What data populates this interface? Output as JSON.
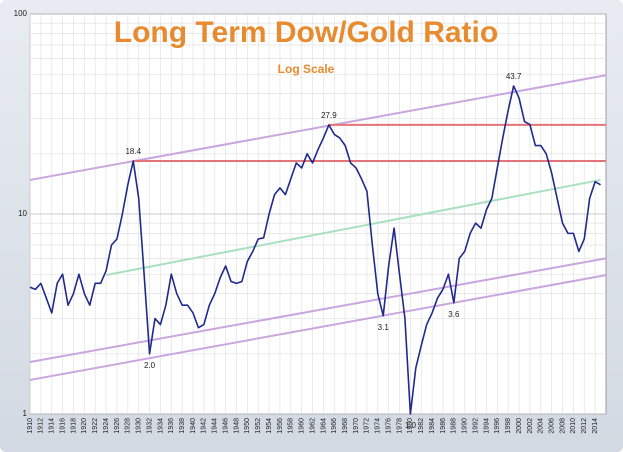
{
  "chart_data": {
    "type": "line",
    "title": "Long Term Dow/Gold Ratio",
    "subtitle": "Log Scale",
    "log_scale": true,
    "grid": true,
    "xlim": [
      1910,
      2016
    ],
    "ylim": [
      1,
      100
    ],
    "yticks": [
      1,
      10,
      100
    ],
    "yminorticks": [
      2,
      3,
      4,
      5,
      6,
      7,
      8,
      9,
      20,
      30,
      40,
      50,
      60,
      70,
      80,
      90
    ],
    "xticks": [
      1910,
      1912,
      1914,
      1916,
      1918,
      1920,
      1922,
      1924,
      1926,
      1928,
      1930,
      1932,
      1934,
      1936,
      1938,
      1940,
      1942,
      1944,
      1946,
      1948,
      1950,
      1952,
      1954,
      1956,
      1958,
      1960,
      1962,
      1964,
      1966,
      1968,
      1970,
      1972,
      1974,
      1976,
      1978,
      1980,
      1982,
      1984,
      1986,
      1988,
      1990,
      1992,
      1994,
      1996,
      1998,
      2000,
      2002,
      2004,
      2006,
      2008,
      2010,
      2012,
      2014
    ],
    "x": [
      1910,
      1911,
      1912,
      1913,
      1914,
      1915,
      1916,
      1917,
      1918,
      1919,
      1920,
      1921,
      1922,
      1923,
      1924,
      1925,
      1926,
      1927,
      1928,
      1929,
      1930,
      1931,
      1932,
      1933,
      1934,
      1935,
      1936,
      1937,
      1938,
      1939,
      1940,
      1941,
      1942,
      1943,
      1944,
      1945,
      1946,
      1947,
      1948,
      1949,
      1950,
      1951,
      1952,
      1953,
      1954,
      1955,
      1956,
      1957,
      1958,
      1959,
      1960,
      1961,
      1962,
      1963,
      1964,
      1965,
      1966,
      1967,
      1968,
      1969,
      1970,
      1971,
      1972,
      1973,
      1974,
      1975,
      1976,
      1977,
      1978,
      1979,
      1980,
      1981,
      1982,
      1983,
      1984,
      1985,
      1986,
      1987,
      1988,
      1989,
      1990,
      1991,
      1992,
      1993,
      1994,
      1995,
      1996,
      1997,
      1998,
      1999,
      2000,
      2001,
      2002,
      2003,
      2004,
      2005,
      2006,
      2007,
      2008,
      2009,
      2010,
      2011,
      2012,
      2013,
      2014,
      2015
    ],
    "series": [
      {
        "name": "Dow/Gold",
        "color": "#1f2a8c",
        "values": [
          4.3,
          4.2,
          4.5,
          3.8,
          3.2,
          4.5,
          5.0,
          3.5,
          4.0,
          5.0,
          4.0,
          3.5,
          4.5,
          4.5,
          5.2,
          7.0,
          7.5,
          10,
          14,
          18.4,
          12,
          5,
          2.0,
          3.0,
          2.8,
          3.5,
          5.0,
          4.0,
          3.5,
          3.5,
          3.2,
          2.7,
          2.8,
          3.5,
          4.0,
          4.8,
          5.5,
          4.6,
          4.5,
          4.6,
          5.8,
          6.5,
          7.5,
          7.6,
          10,
          12.5,
          13.5,
          12.5,
          15,
          18,
          17,
          20,
          18,
          21,
          24,
          27.9,
          25,
          24,
          22,
          18,
          17,
          15,
          13,
          7.0,
          4.0,
          3.1,
          5.5,
          8.5,
          5.0,
          3.0,
          1.0,
          1.7,
          2.2,
          2.8,
          3.2,
          3.8,
          4.2,
          5.0,
          3.6,
          6.0,
          6.5,
          8.0,
          9.0,
          8.5,
          10.5,
          12,
          17,
          24,
          33,
          43.7,
          38,
          29,
          28,
          22,
          22,
          20,
          16,
          12,
          9.0,
          8.0,
          8.0,
          6.5,
          7.5,
          12,
          14.5,
          14
        ]
      }
    ],
    "annotations": [
      {
        "x": 1929,
        "y": 18.4,
        "label": "18.4"
      },
      {
        "x": 1965,
        "y": 27.9,
        "label": "27.9"
      },
      {
        "x": 1999,
        "y": 43.7,
        "label": "43.7"
      },
      {
        "x": 1932,
        "y": 2.0,
        "label": "2.0"
      },
      {
        "x": 1975,
        "y": 3.1,
        "label": "3.1"
      },
      {
        "x": 1988,
        "y": 3.6,
        "label": "3.6"
      },
      {
        "x": 1980,
        "y": 1.0,
        "label": "1.0"
      }
    ],
    "reference_lines": [
      {
        "color": "#c9a6e0",
        "x": [
          1910,
          2016
        ],
        "y": [
          14.8,
          49.4
        ]
      },
      {
        "color": "#a8e0c0",
        "x": [
          1924,
          2015
        ],
        "y": [
          4.95,
          14.8
        ]
      },
      {
        "color": "#c9a6e0",
        "x": [
          1910,
          2016
        ],
        "y": [
          1.82,
          6.0
        ]
      },
      {
        "color": "#c9a6e0",
        "x": [
          1910,
          2016
        ],
        "y": [
          1.48,
          4.95
        ]
      },
      {
        "color": "#e5737a",
        "x": [
          1929,
          2016
        ],
        "y": [
          18.4,
          18.4
        ]
      },
      {
        "color": "#e5737a",
        "x": [
          1965,
          2016
        ],
        "y": [
          27.9,
          27.9
        ]
      }
    ]
  }
}
